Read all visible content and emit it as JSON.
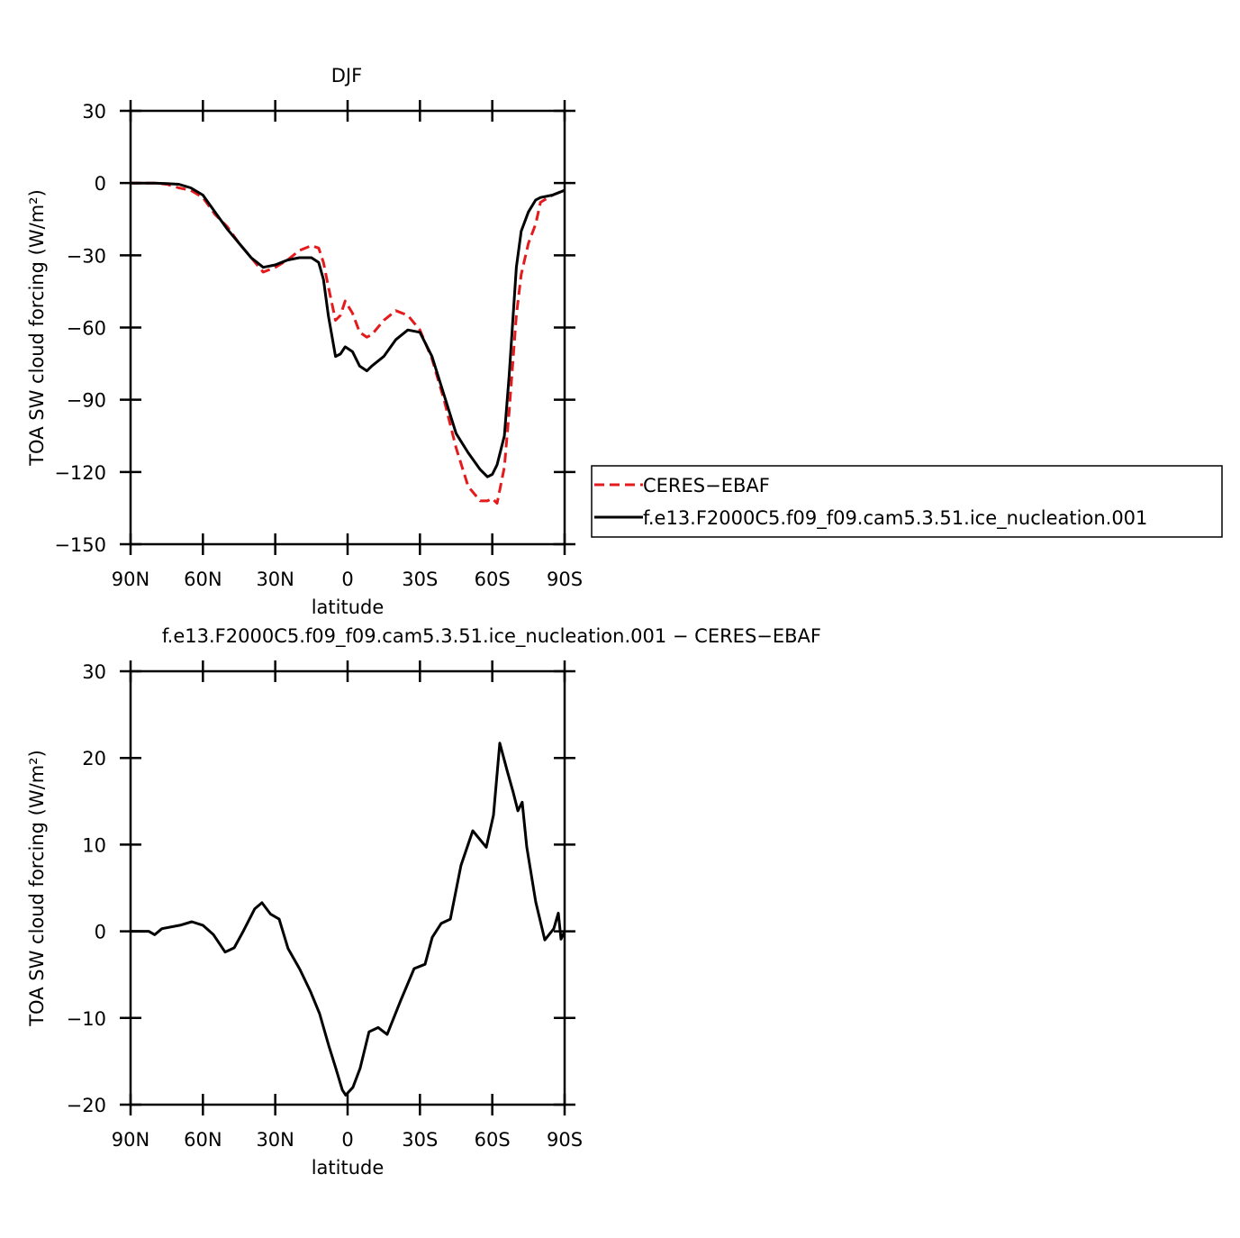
{
  "chart_data": [
    {
      "type": "line",
      "title": "DJF",
      "x_label": "latitude",
      "y_label": "TOA SW cloud forcing (W/m²)",
      "x": [
        90,
        85,
        80,
        75,
        70,
        65,
        60,
        55,
        50,
        45,
        40,
        35,
        30,
        25,
        20,
        15,
        12,
        10,
        8,
        5,
        3,
        1,
        -2,
        -5,
        -8,
        -10,
        -15,
        -20,
        -25,
        -30,
        -35,
        -40,
        -45,
        -50,
        -55,
        -58,
        -60,
        -62,
        -65,
        -67,
        -70,
        -72,
        -75,
        -78,
        -80,
        -85,
        -90
      ],
      "series": [
        {
          "name": "CERES−EBAF",
          "color": "#e41a1c",
          "line_style": "dashed",
          "values": [
            0,
            0,
            0,
            -0.5,
            -2,
            -3,
            -6,
            -13,
            -18,
            -25,
            -31,
            -37,
            -35,
            -32,
            -28,
            -26,
            -27,
            -33,
            -43,
            -57,
            -55,
            -49,
            -54,
            -62,
            -64,
            -63,
            -57,
            -53,
            -55,
            -61,
            -73,
            -90,
            -110,
            -126,
            -132,
            -132,
            -131,
            -133,
            -118,
            -95,
            -55,
            -38,
            -25,
            -17,
            -8,
            -5,
            -3
          ]
        },
        {
          "name": "f.e13.F2000C5.f09_f09.cam5.3.51.ice_nucleation.001",
          "color": "#000000",
          "line_style": "solid",
          "values": [
            0,
            0,
            0,
            -0.2,
            -0.5,
            -2,
            -5,
            -12,
            -19,
            -25,
            -31,
            -35,
            -34,
            -32,
            -31,
            -31,
            -33,
            -40,
            -55,
            -72,
            -71,
            -68,
            -70,
            -76,
            -78,
            -76,
            -72,
            -65,
            -61,
            -62,
            -72,
            -88,
            -104,
            -112,
            -119,
            -122,
            -121,
            -117,
            -105,
            -80,
            -35,
            -20,
            -12,
            -7,
            -6,
            -5,
            -3
          ]
        }
      ],
      "xlim": [
        90,
        -90
      ],
      "xticks": [
        {
          "value": 90,
          "label": "90N"
        },
        {
          "value": 60,
          "label": "60N"
        },
        {
          "value": 30,
          "label": "30N"
        },
        0,
        {
          "value": -30,
          "label": "30S"
        },
        {
          "value": -60,
          "label": "60S"
        },
        {
          "value": -90,
          "label": "90S"
        }
      ],
      "ylim": [
        -150,
        30
      ],
      "yticks": [
        {
          "value": -150,
          "label": "−150"
        },
        {
          "value": -120,
          "label": "−120"
        },
        {
          "value": -90,
          "label": "−90"
        },
        {
          "value": -60,
          "label": "−60"
        },
        {
          "value": -30,
          "label": "−30"
        },
        0,
        30
      ],
      "legend": "right"
    },
    {
      "type": "line",
      "title": "f.e13.F2000C5.f09_f09.cam5.3.51.ice_nucleation.001 − CERES−EBAF",
      "x_label": "latitude",
      "y_label": "TOA SW cloud forcing (W/m²)",
      "x": [
        90,
        82.5,
        80,
        77,
        69.5,
        64.6,
        60,
        55.6,
        50.8,
        47,
        43.3,
        38.5,
        35.5,
        32,
        28.4,
        24.7,
        19.8,
        15.3,
        11.6,
        7.8,
        4.9,
        2.2,
        0.8,
        -2.2,
        -5.2,
        -8.9,
        -12.7,
        -16.4,
        -22,
        -27.6,
        -32.1,
        -35.1,
        -38.8,
        -42.6,
        -47,
        -51.9,
        -57.5,
        -60.5,
        -63.1,
        -66.1,
        -68.7,
        -70.6,
        -72.4,
        -74.3,
        -78,
        -81.8,
        -85.5,
        -87.4,
        -88.5,
        -90
      ],
      "values": [
        0,
        0,
        -0.4,
        0.3,
        0.7,
        1.1,
        0.7,
        -0.4,
        -2.4,
        -1.9,
        0,
        2.6,
        3.3,
        2,
        1.4,
        -2,
        -4.4,
        -7,
        -9.5,
        -13.2,
        -15.8,
        -18.3,
        -18.9,
        -18,
        -15.8,
        -11.6,
        -11.1,
        -11.9,
        -8,
        -4.3,
        -3.8,
        -0.7,
        0.9,
        1.4,
        7.6,
        11.6,
        9.7,
        13.4,
        21.7,
        18.6,
        16,
        13.9,
        14.9,
        9.7,
        3.4,
        -1,
        0.3,
        2.1,
        -0.9,
        0
      ],
      "color": "#000000",
      "xlim": [
        90,
        -90
      ],
      "xticks": [
        {
          "value": 90,
          "label": "90N"
        },
        {
          "value": 60,
          "label": "60N"
        },
        {
          "value": 30,
          "label": "30N"
        },
        0,
        {
          "value": -30,
          "label": "30S"
        },
        {
          "value": -60,
          "label": "60S"
        },
        {
          "value": -90,
          "label": "90S"
        }
      ],
      "ylim": [
        -20,
        30
      ],
      "yticks": [
        {
          "value": -20,
          "label": "−20"
        },
        {
          "value": -10,
          "label": "−10"
        },
        0,
        10,
        20,
        30
      ]
    }
  ]
}
